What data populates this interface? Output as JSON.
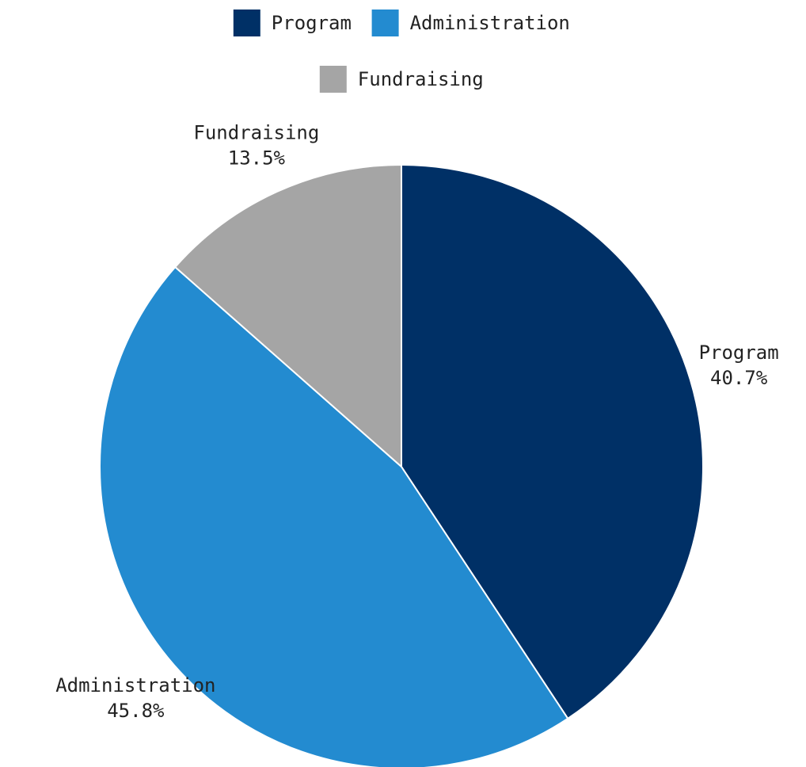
{
  "chart_data": {
    "type": "pie",
    "title": "",
    "categories": [
      "Program",
      "Administration",
      "Fundraising"
    ],
    "values": [
      40.7,
      45.8,
      13.5
    ],
    "value_labels": [
      "40.7%",
      "45.8%",
      "13.5%"
    ],
    "colors": [
      "#003066",
      "#238bd0",
      "#a5a5a5"
    ],
    "legend": {
      "position": "top",
      "entries": [
        "Program",
        "Administration",
        "Fundraising"
      ]
    },
    "start": "12 o'clock",
    "direction": "clockwise"
  }
}
